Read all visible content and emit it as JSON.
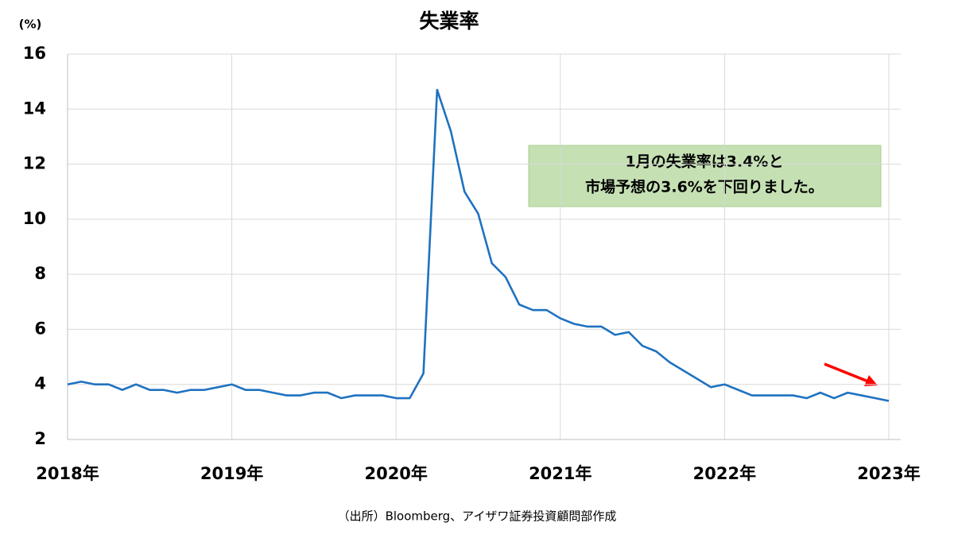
{
  "chart_data": {
    "type": "line",
    "title": "失業率",
    "ylabel": "(%)",
    "categories": [
      "2018年",
      null,
      null,
      null,
      null,
      null,
      null,
      null,
      null,
      null,
      null,
      null,
      "2019年",
      null,
      null,
      null,
      null,
      null,
      null,
      null,
      null,
      null,
      null,
      null,
      "2020年",
      null,
      null,
      null,
      null,
      null,
      null,
      null,
      null,
      null,
      null,
      null,
      "2021年",
      null,
      null,
      null,
      null,
      null,
      null,
      null,
      null,
      null,
      null,
      null,
      "2022年",
      null,
      null,
      null,
      null,
      null,
      null,
      null,
      null,
      null,
      null,
      null,
      "2023年"
    ],
    "values": [
      4.0,
      4.1,
      4.0,
      4.0,
      3.8,
      4.0,
      3.8,
      3.8,
      3.7,
      3.8,
      3.8,
      3.9,
      4.0,
      3.8,
      3.8,
      3.7,
      3.6,
      3.6,
      3.7,
      3.7,
      3.5,
      3.6,
      3.6,
      3.6,
      3.5,
      3.5,
      4.4,
      14.7,
      13.2,
      11.0,
      10.2,
      8.4,
      7.9,
      6.9,
      6.7,
      6.7,
      6.4,
      6.2,
      6.1,
      6.1,
      5.8,
      5.9,
      5.4,
      5.2,
      4.8,
      4.5,
      4.2,
      3.9,
      4.0,
      3.8,
      3.6,
      3.6,
      3.6,
      3.6,
      3.5,
      3.7,
      3.5,
      3.7,
      3.6,
      3.5,
      3.4
    ],
    "color": "#1f72c0",
    "ylim": [
      2,
      16
    ],
    "yticks": [
      2,
      4,
      6,
      8,
      10,
      12,
      14,
      16
    ],
    "grid": true,
    "annotations": [
      "1月の失業率は3.4%と",
      "市場予想の3.6%を下回りました。"
    ],
    "source": "（出所）Bloomberg、アイザワ証券投資顧問部作成"
  }
}
